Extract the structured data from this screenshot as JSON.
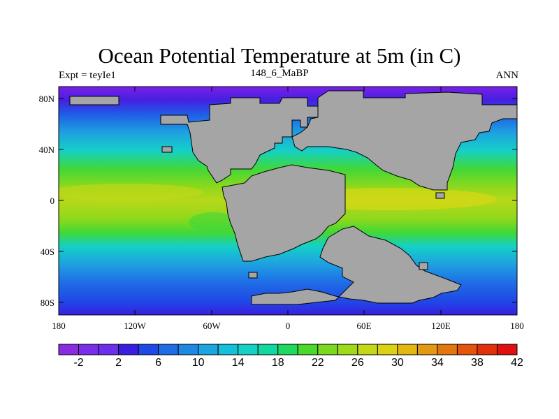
{
  "title": "Ocean Potential Temperature at 5m (in C)",
  "subtitle_left": "Expt = teyIe1",
  "subtitle_center": "148_6_MaBP",
  "subtitle_right": "ANN",
  "axes": {
    "x_ticks": [
      "180",
      "120W",
      "60W",
      "0",
      "60E",
      "120E",
      "180"
    ],
    "y_ticks": [
      "80N",
      "40N",
      "0",
      "40S",
      "80S"
    ]
  },
  "colorbar": {
    "labels": [
      "-2",
      "2",
      "6",
      "10",
      "14",
      "18",
      "22",
      "26",
      "30",
      "34",
      "38",
      "42"
    ],
    "colors": [
      "#8A2BE2",
      "#7A2EE8",
      "#6A30EC",
      "#3A1FE0",
      "#1F48E6",
      "#1F6CE6",
      "#1E88E4",
      "#1AA6E0",
      "#16C0DA",
      "#12D2C6",
      "#10D8A0",
      "#1FD860",
      "#4AD82A",
      "#7AD81E",
      "#A0D81A",
      "#C4D818",
      "#DCD214",
      "#E2B810",
      "#E49A10",
      "#E4760E",
      "#E4540C",
      "#E2300A",
      "#E01010"
    ]
  },
  "colors": {
    "land": "#A5A5A5"
  }
}
